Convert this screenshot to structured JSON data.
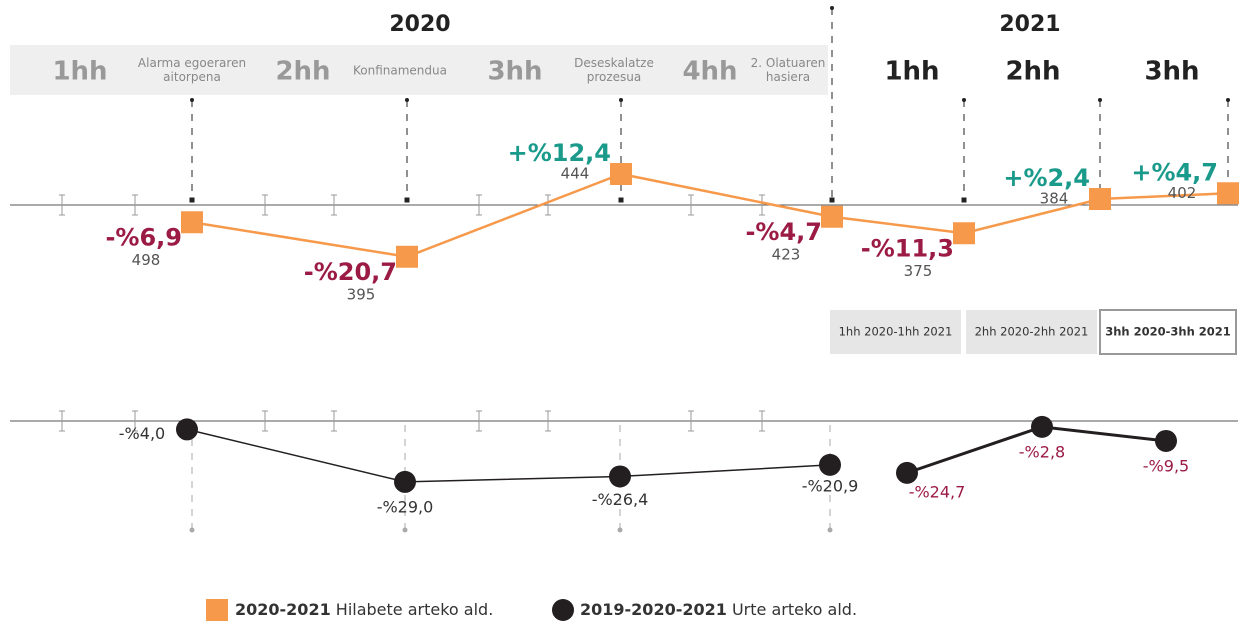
{
  "header": {
    "years": [
      "2020",
      "2021"
    ],
    "quarters": [
      "1hh",
      "2hh",
      "3hh",
      "4hh",
      "1hh",
      "2hh",
      "3hh"
    ],
    "events": [
      "Alarma egoeraren aitorpena",
      "Konfinamendua",
      "Deseskalatze prozesua",
      "2. Olatuaren hasiera"
    ]
  },
  "tabs": {
    "items": [
      "1hh 2020-1hh 2021",
      "2hh 2020-2hh 2021",
      "3hh 2020-3hh 2021"
    ],
    "selected": 2
  },
  "chart_data": [
    {
      "type": "line",
      "legend_period": "2020-2021",
      "series": [
        {
          "name": "Hilabete arteko ald.",
          "color": "#f7994a",
          "values": [
            498,
            395,
            444,
            423,
            375,
            384,
            402
          ],
          "changes": [
            -6.9,
            -20.7,
            12.4,
            -4.7,
            -11.3,
            2.4,
            4.7
          ],
          "change_labels": [
            "-%6,9",
            "-%20,7",
            "+%12,4",
            "-%4,7",
            "-%11,3",
            "+%2,4",
            "+%4,7"
          ]
        }
      ]
    },
    {
      "type": "line",
      "legend_period": "2019-2020-2021",
      "series": [
        {
          "name": "Urte arteko ald.",
          "color": "#231f20",
          "values": [
            -4.0,
            -29.0,
            -26.4,
            -20.9,
            -24.7,
            -2.8,
            -9.5
          ],
          "value_labels": [
            "-%4,0",
            "-%29,0",
            "-%26,4",
            "-%20,9",
            "-%24,7",
            "-%2,8",
            "-%9,5"
          ]
        }
      ]
    }
  ]
}
